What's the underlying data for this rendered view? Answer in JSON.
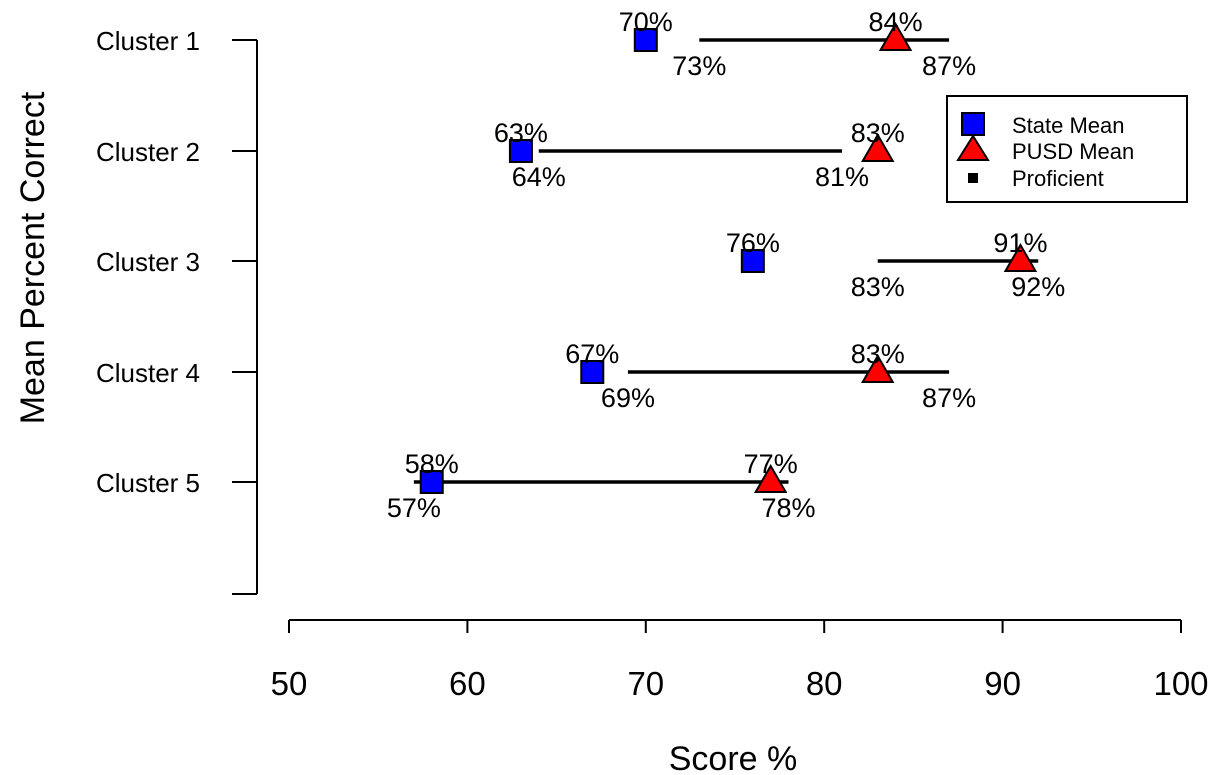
{
  "chart_data": {
    "type": "scatter",
    "xlabel": "Score %",
    "ylabel": "Mean Percent Correct",
    "xlim": [
      50,
      100
    ],
    "xticks": [
      50,
      60,
      70,
      80,
      90,
      100
    ],
    "xtick_labels": [
      "50",
      "60",
      "70",
      "80",
      "90",
      "100"
    ],
    "categories": [
      "Cluster 1",
      "Cluster 2",
      "Cluster 3",
      "Cluster 4",
      "Cluster 5"
    ],
    "series": [
      {
        "name": "State Mean",
        "marker": "square",
        "color": "#0000ff",
        "values": [
          70,
          63,
          76,
          67,
          58
        ],
        "labels": [
          "70%",
          "63%",
          "76%",
          "67%",
          "58%"
        ]
      },
      {
        "name": "PUSD Mean",
        "marker": "triangle",
        "color": "#ff0000",
        "values": [
          84,
          83,
          91,
          83,
          77
        ],
        "labels": [
          "84%",
          "83%",
          "91%",
          "83%",
          "77%"
        ]
      },
      {
        "name": "Proficient",
        "marker": "line-segment",
        "color": "#000000",
        "start": [
          73,
          64,
          83,
          69,
          57
        ],
        "end": [
          87,
          81,
          92,
          87,
          78
        ],
        "start_labels": [
          "73%",
          "64%",
          "83%",
          "69%",
          "57%"
        ],
        "end_labels": [
          "87%",
          "81%",
          "92%",
          "87%",
          "78%"
        ]
      }
    ],
    "legend": {
      "position": "top-right",
      "entries": [
        "State Mean",
        "PUSD Mean",
        "Proficient"
      ]
    },
    "grid": false
  }
}
